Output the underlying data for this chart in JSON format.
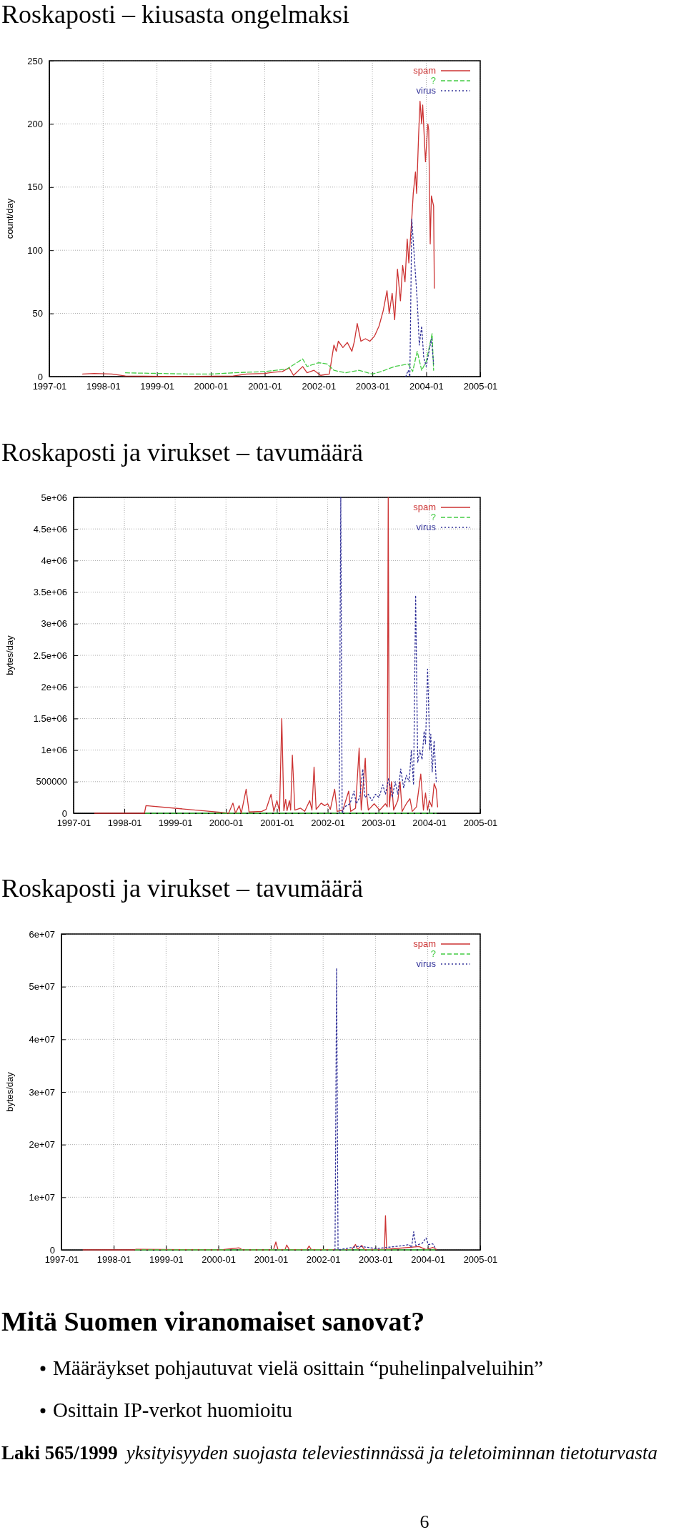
{
  "chart_data": [
    {
      "type": "line",
      "title": "Roskaposti – kiusasta ongelmaksi",
      "ylabel": "count/day",
      "xlim": [
        "1997-01",
        "2005-01"
      ],
      "xticks": [
        "1997-01",
        "1998-01",
        "1999-01",
        "2000-01",
        "2001-01",
        "2002-01",
        "2003-01",
        "2004-01",
        "2005-01"
      ],
      "ylim": [
        0,
        250
      ],
      "yticks": [
        0,
        50,
        100,
        150,
        200,
        250
      ],
      "grid": true,
      "legend": "top right",
      "series": [
        {
          "name": "spam",
          "color": "#cc3333",
          "line_style": "solid",
          "x": [
            "1997-08-15",
            "1997-11-01",
            "1998-03-01",
            "1998-06-01",
            "1999-06-01",
            "2000-06-01",
            "2000-09-01",
            "2001-01-01",
            "2001-03-01",
            "2001-05-01",
            "2001-06-15",
            "2001-07-15",
            "2001-09-15",
            "2001-10-15",
            "2001-12-01",
            "2002-01-15",
            "2002-03-15",
            "2002-04-15",
            "2002-05-01",
            "2002-05-15",
            "2002-06-15",
            "2002-07-15",
            "2002-08-15",
            "2002-09-01",
            "2002-09-20",
            "2002-10-15",
            "2002-11-15",
            "2002-12-15",
            "2003-01-15",
            "2003-02-15",
            "2003-03-15",
            "2003-04-10",
            "2003-04-25",
            "2003-05-15",
            "2003-06-01",
            "2003-06-20",
            "2003-07-10",
            "2003-07-25",
            "2003-08-10",
            "2003-08-25",
            "2003-09-05",
            "2003-09-25",
            "2003-10-05",
            "2003-10-20",
            "2003-10-28",
            "2003-11-10",
            "2003-11-20",
            "2003-12-01",
            "2003-12-08",
            "2003-12-27",
            "2004-01-12",
            "2004-01-18",
            "2004-01-28",
            "2004-02-05",
            "2004-02-20",
            "2004-02-25"
          ],
          "values": [
            2,
            2.5,
            2,
            0.5,
            0,
            0.5,
            2,
            2.5,
            3.5,
            4,
            7,
            1,
            8,
            3,
            5,
            1,
            2,
            25,
            20,
            28,
            23,
            27,
            20,
            28,
            42,
            28,
            30,
            28,
            32,
            40,
            52,
            68,
            50,
            66,
            45,
            85,
            60,
            88,
            75,
            109,
            90,
            125,
            145,
            162,
            145,
            190,
            218,
            200,
            215,
            170,
            200,
            195,
            105,
            143,
            135,
            70
          ]
        },
        {
          "name": "?",
          "color": "#44cc44",
          "line_style": "dashed",
          "x": [
            "1998-06-01",
            "1999-09-01",
            "2000-01-01",
            "2000-06-01",
            "2001-01-01",
            "2001-06-01",
            "2001-09-15",
            "2001-10-15",
            "2002-01-01",
            "2002-03-01",
            "2002-04-15",
            "2002-07-01",
            "2002-10-01",
            "2003-01-01",
            "2003-03-01",
            "2003-06-01",
            "2003-09-01",
            "2003-10-01",
            "2003-11-01",
            "2003-12-01",
            "2004-01-01",
            "2004-02-10",
            "2004-02-20"
          ],
          "values": [
            3,
            2,
            2,
            3,
            4,
            6,
            14,
            8,
            11,
            10,
            5,
            3,
            5,
            2,
            4,
            8,
            10,
            4,
            20,
            5,
            12,
            34,
            5
          ]
        },
        {
          "name": "virus",
          "color": "#333399",
          "line_style": "dotted",
          "x": [
            "2003-08-15",
            "2003-09-01",
            "2003-09-12",
            "2003-09-25",
            "2003-11-01",
            "2003-11-15",
            "2003-12-01",
            "2003-12-15",
            "2004-01-01",
            "2004-01-20",
            "2004-02-05",
            "2004-02-20"
          ],
          "values": [
            0,
            5,
            0,
            125,
            60,
            25,
            40,
            15,
            8,
            20,
            30,
            10
          ]
        }
      ]
    },
    {
      "type": "line",
      "title": "Roskaposti ja virukset – tavumäärä",
      "ylabel": "bytes/day",
      "xlim": [
        "1997-01",
        "2005-01"
      ],
      "xticks": [
        "1997-01",
        "1998-01",
        "1999-01",
        "2000-01",
        "2001-01",
        "2002-01",
        "2003-01",
        "2004-01",
        "2005-01"
      ],
      "ylim": [
        0,
        5000000
      ],
      "yticks": [
        0,
        500000,
        {
          "value": 1000000,
          "label": "1e+06"
        },
        {
          "value": 1500000,
          "label": "1.5e+06"
        },
        {
          "value": 2000000,
          "label": "2e+06"
        },
        {
          "value": 2500000,
          "label": "2.5e+06"
        },
        {
          "value": 3000000,
          "label": "3e+06"
        },
        {
          "value": 3500000,
          "label": "3.5e+06"
        },
        {
          "value": 4000000,
          "label": "4e+06"
        },
        {
          "value": 4500000,
          "label": "4.5e+06"
        },
        {
          "value": 5000000,
          "label": "5e+06"
        }
      ],
      "grid": true,
      "legend": "top right",
      "series": [
        {
          "name": "spam",
          "color": "#cc3333",
          "line_style": "solid",
          "x": [
            "1997-06-01",
            "1998-05-25",
            "1998-06-05",
            "1999-12-20",
            "2000-01-20",
            "2000-02-20",
            "2000-03-10",
            "2000-04-05",
            "2000-04-20",
            "2000-05-25",
            "2000-06-15",
            "2000-09-15",
            "2000-10-15",
            "2000-11-20",
            "2000-12-10",
            "2001-01-01",
            "2001-01-20",
            "2001-02-05",
            "2001-02-20",
            "2001-03-05",
            "2001-03-15",
            "2001-04-01",
            "2001-04-10",
            "2001-04-22",
            "2001-05-10",
            "2001-06-20",
            "2001-07-20",
            "2001-08-25",
            "2001-09-10",
            "2001-09-25",
            "2001-10-10",
            "2001-11-15",
            "2001-12-10",
            "2002-01-01",
            "2002-01-20",
            "2002-02-20",
            "2002-03-10",
            "2002-04-20",
            "2002-06-01",
            "2002-06-15",
            "2002-07-20",
            "2002-08-15",
            "2002-08-30",
            "2002-09-28",
            "2002-10-08",
            "2002-10-20",
            "2002-12-01",
            "2003-01-10",
            "2003-02-20",
            "2003-03-05",
            "2003-03-12",
            "2003-03-20",
            "2003-04-05",
            "2003-04-20",
            "2003-05-20",
            "2003-06-05",
            "2003-06-20",
            "2003-07-20",
            "2003-08-15",
            "2003-09-01",
            "2003-10-01",
            "2003-11-01",
            "2003-11-20",
            "2003-12-05",
            "2003-12-20",
            "2004-01-01",
            "2004-01-20",
            "2004-02-05",
            "2004-02-20",
            "2004-03-01"
          ],
          "values": [
            0,
            0,
            120000,
            10000,
            0,
            160000,
            0,
            120000,
            0,
            380000,
            20000,
            30000,
            60000,
            300000,
            30000,
            200000,
            30000,
            1500000,
            40000,
            220000,
            40000,
            200000,
            50000,
            920000,
            50000,
            80000,
            30000,
            200000,
            50000,
            730000,
            60000,
            160000,
            120000,
            150000,
            60000,
            380000,
            30000,
            50000,
            350000,
            30000,
            80000,
            1030000,
            50000,
            870000,
            300000,
            50000,
            150000,
            50000,
            150000,
            100000,
            5000000,
            100000,
            500000,
            50000,
            200000,
            500000,
            30000,
            150000,
            230000,
            30000,
            100000,
            620000,
            50000,
            320000,
            50000,
            200000,
            100000,
            470000,
            380000,
            100000
          ]
        },
        {
          "name": "?",
          "color": "#44cc44",
          "line_style": "dashed",
          "x": [
            "1998-06-01",
            "2004-02-20"
          ],
          "values": [
            0,
            0
          ]
        },
        {
          "name": "virus",
          "color": "#333399",
          "line_style": "dotted",
          "x": [
            "2002-03-25",
            "2002-04-05",
            "2002-04-15",
            "2002-05-01",
            "2002-06-10",
            "2002-07-10",
            "2002-07-25",
            "2002-08-20",
            "2002-09-10",
            "2002-09-25",
            "2002-10-20",
            "2002-11-15",
            "2002-12-10",
            "2003-01-05",
            "2003-02-01",
            "2003-02-20",
            "2003-03-15",
            "2003-04-10",
            "2003-05-01",
            "2003-05-20",
            "2003-06-10",
            "2003-07-01",
            "2003-07-20",
            "2003-08-10",
            "2003-08-25",
            "2003-09-10",
            "2003-09-25",
            "2003-10-10",
            "2003-10-25",
            "2003-11-10",
            "2003-11-25",
            "2003-12-05",
            "2003-12-20",
            "2004-01-05",
            "2004-01-12",
            "2004-01-22",
            "2004-02-05",
            "2004-02-20"
          ],
          "values": [
            0,
            5000000,
            0,
            100000,
            150000,
            350000,
            150000,
            250000,
            700000,
            250000,
            300000,
            200000,
            300000,
            250000,
            450000,
            300000,
            550000,
            250000,
            500000,
            300000,
            700000,
            400000,
            600000,
            500000,
            1000000,
            450000,
            3450000,
            800000,
            1000000,
            850000,
            1300000,
            1100000,
            2280000,
            1000000,
            1250000,
            650000,
            1150000,
            500000
          ]
        }
      ]
    },
    {
      "type": "line",
      "title": "Roskaposti ja virukset – tavumäärä",
      "ylabel": "bytes/day",
      "xlim": [
        "1997-01",
        "2005-01"
      ],
      "xticks": [
        "1997-01",
        "1998-01",
        "1999-01",
        "2000-01",
        "2001-01",
        "2002-01",
        "2003-01",
        "2004-01",
        "2005-01"
      ],
      "ylim": [
        0,
        60000000
      ],
      "yticks": [
        0,
        {
          "value": 10000000,
          "label": "1e+07"
        },
        {
          "value": 20000000,
          "label": "2e+07"
        },
        {
          "value": 30000000,
          "label": "3e+07"
        },
        {
          "value": 40000000,
          "label": "4e+07"
        },
        {
          "value": 50000000,
          "label": "5e+07"
        },
        {
          "value": 60000000,
          "label": "6e+07"
        }
      ],
      "grid": true,
      "legend": "top right",
      "series": [
        {
          "name": "spam",
          "color": "#cc3333",
          "line_style": "solid",
          "x": [
            "1997-06-01",
            "1998-05-25",
            "1998-06-05",
            "1999-12-20",
            "2000-01-20",
            "2000-05-25",
            "2000-06-15",
            "2001-01-20",
            "2001-02-05",
            "2001-02-20",
            "2001-04-10",
            "2001-04-22",
            "2001-05-10",
            "2001-09-10",
            "2001-09-25",
            "2001-10-10",
            "2002-07-20",
            "2002-08-15",
            "2002-08-30",
            "2002-09-28",
            "2002-10-08",
            "2002-10-20",
            "2003-03-05",
            "2003-03-12",
            "2003-03-20",
            "2003-11-01",
            "2003-12-20",
            "2004-02-05",
            "2004-03-01"
          ],
          "values": [
            0,
            0,
            120000,
            10000,
            0,
            380000,
            20000,
            30000,
            1500000,
            40000,
            50000,
            920000,
            50000,
            50000,
            730000,
            60000,
            80000,
            1030000,
            50000,
            870000,
            300000,
            50000,
            100000,
            6500000,
            100000,
            620000,
            50000,
            470000,
            100000
          ]
        },
        {
          "name": "?",
          "color": "#44cc44",
          "line_style": "dashed",
          "x": [
            "1998-06-01",
            "2004-02-20"
          ],
          "values": [
            0,
            0
          ]
        },
        {
          "name": "virus",
          "color": "#333399",
          "line_style": "dotted",
          "x": [
            "2002-03-25",
            "2002-04-05",
            "2002-04-15",
            "2002-09-10",
            "2003-01-05",
            "2003-06-10",
            "2003-08-25",
            "2003-09-10",
            "2003-09-25",
            "2003-10-10",
            "2003-11-25",
            "2003-12-20",
            "2004-01-05",
            "2004-02-05",
            "2004-02-20"
          ],
          "values": [
            0,
            53500000,
            0,
            700000,
            250000,
            700000,
            1000000,
            450000,
            3450000,
            800000,
            1300000,
            2280000,
            1000000,
            1150000,
            500000
          ]
        }
      ]
    },
    {
      "type": "other",
      "title": "Mitä Suomen viranomaiset sanovat?",
      "annotations": [
        "Määräykset pohjautuvat vielä osittain “puhelinpalveluihin”",
        "Osittain IP-verkot huomioitu",
        "Laki 565/1999",
        "yksityisyyden suojasta televiestinnässä ja teletoiminnan tietoturvasta",
        "6"
      ]
    }
  ]
}
